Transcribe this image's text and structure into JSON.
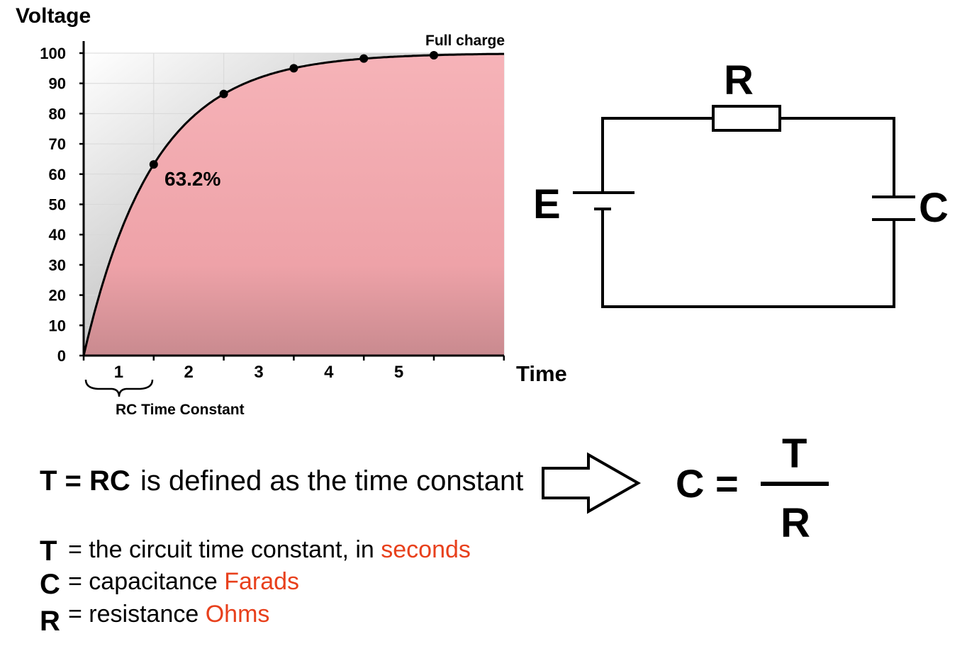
{
  "chart_data": {
    "type": "area",
    "ylabel": "Voltage",
    "xlabel": "Time",
    "y_ticks": [
      "0",
      "10",
      "20",
      "30",
      "40",
      "50",
      "60",
      "70",
      "80",
      "90",
      "100"
    ],
    "x_ticks": [
      "1",
      "2",
      "3",
      "4",
      "5"
    ],
    "ylim": [
      0,
      100
    ],
    "xlim": [
      0,
      6
    ],
    "points": [
      {
        "x": 1,
        "y": 63.2
      },
      {
        "x": 2,
        "y": 86.5
      },
      {
        "x": 3,
        "y": 95.0
      },
      {
        "x": 4,
        "y": 98.2
      },
      {
        "x": 5,
        "y": 99.3
      }
    ],
    "annotations": {
      "percent": "63.2%",
      "full": "Full charge",
      "brace": "RC Time Constant"
    },
    "grid": true,
    "fill_color": "#f4a6ad",
    "curve_color": "#000000"
  },
  "circuit": {
    "resistor_label": "R",
    "battery_label": "E",
    "capacitor_label": "C"
  },
  "equation": {
    "lhs": "T = RC",
    "description": "is defined as the time constant",
    "formula_lhs": "C =",
    "numerator": "T",
    "denominator": "R"
  },
  "definitions": [
    {
      "symbol": "T",
      "text": "= the circuit time constant, in ",
      "unit": "seconds"
    },
    {
      "symbol": "C",
      "text": "= capacitance ",
      "unit": "Farads"
    },
    {
      "symbol": "R",
      "text": "= resistance ",
      "unit": "Ohms"
    }
  ],
  "colors": {
    "unit_text": "#e8401c"
  }
}
